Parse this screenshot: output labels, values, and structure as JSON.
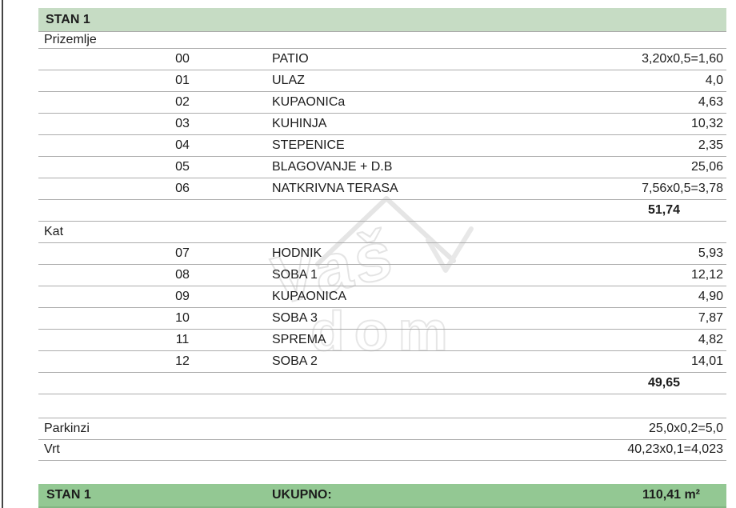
{
  "header": {
    "title": "STAN 1"
  },
  "sections": [
    {
      "label": "Prizemlje",
      "rows": [
        {
          "num": "00",
          "name": "PATIO",
          "value": "3,20x0,5=1,60"
        },
        {
          "num": "01",
          "name": "ULAZ",
          "value": "4,0"
        },
        {
          "num": "02",
          "name": "KUPAONICa",
          "value": "4,63"
        },
        {
          "num": "03",
          "name": "KUHINJA",
          "value": "10,32"
        },
        {
          "num": "04",
          "name": "STEPENICE",
          "value": "2,35"
        },
        {
          "num": "05",
          "name": "BLAGOVANJE + D.B",
          "value": "25,06"
        },
        {
          "num": "06",
          "name": "NATKRIVNA TERASA",
          "value": "7,56x0,5=3,78"
        }
      ],
      "subtotal": "51,74"
    },
    {
      "label": "Kat",
      "rows": [
        {
          "num": "07",
          "name": "HODNIK",
          "value": "5,93"
        },
        {
          "num": "08",
          "name": "SOBA 1",
          "value": "12,12"
        },
        {
          "num": "09",
          "name": "KUPAONICA",
          "value": "4,90"
        },
        {
          "num": "10",
          "name": "SOBA 3",
          "value": "7,87"
        },
        {
          "num": "11",
          "name": "SPREMA",
          "value": "4,82"
        },
        {
          "num": "12",
          "name": "SOBA 2",
          "value": "14,01"
        }
      ],
      "subtotal": "49,65"
    }
  ],
  "extras": [
    {
      "label": "Parkinzi",
      "value": "25,0x0,2=5,0"
    },
    {
      "label": "Vrt",
      "value": "40,23x0,1=4,023"
    }
  ],
  "footer": {
    "title": "STAN 1",
    "label": "UKUPNO:",
    "total": "110,41 m²"
  },
  "watermark": {
    "line1": "Vaš",
    "line2": "dom"
  },
  "colors": {
    "header_bg": "#c6dcc4",
    "footer_bg": "#93c893",
    "row_line": "#ababab",
    "watermark": "#e5e5e5",
    "text": "#1c1c1c"
  }
}
